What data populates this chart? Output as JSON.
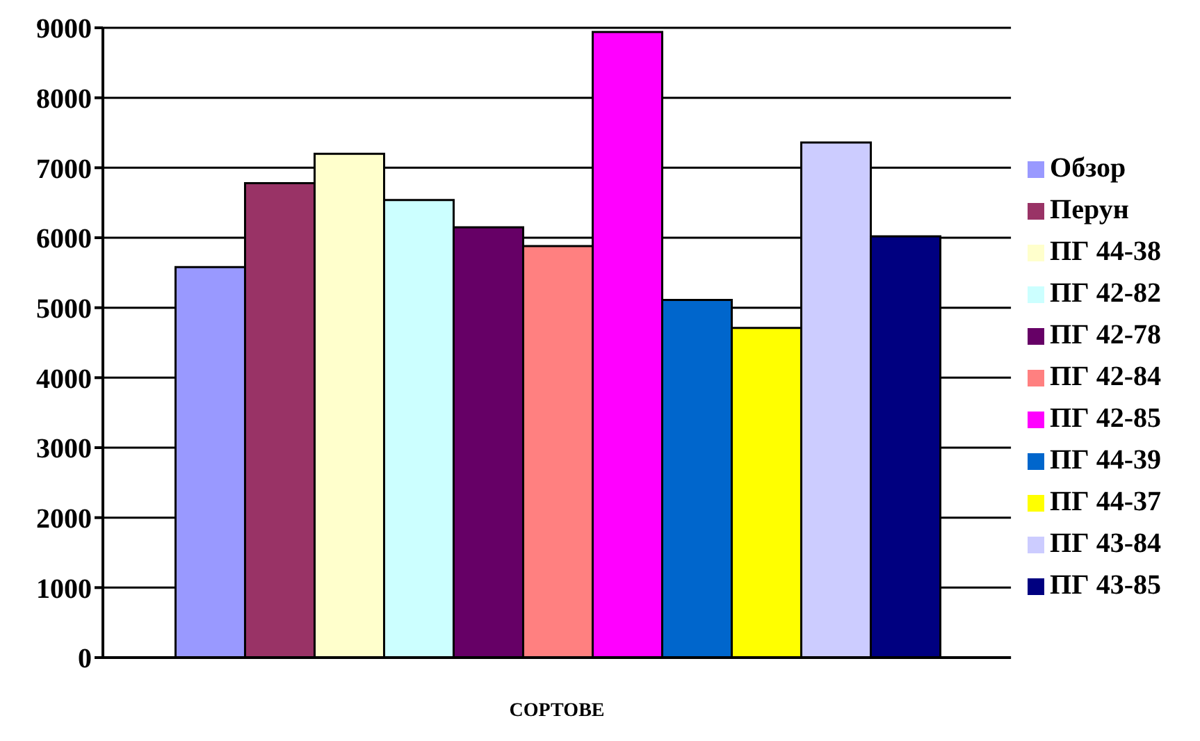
{
  "chart_data": {
    "type": "bar",
    "xlabel": "СОРТОВЕ",
    "categories": [
      null
    ],
    "ylim": [
      0,
      9000
    ],
    "yticks": [
      0,
      1000,
      2000,
      3000,
      4000,
      5000,
      6000,
      7000,
      8000,
      9000
    ],
    "grid": "y",
    "legend": "right",
    "series": [
      {
        "name": "Обзор",
        "color": "#9999ff",
        "values": [
          5580
        ]
      },
      {
        "name": "Перун",
        "color": "#993366",
        "values": [
          6780
        ]
      },
      {
        "name": "ПГ 44-38",
        "color": "#ffffcc",
        "values": [
          7200
        ]
      },
      {
        "name": "ПГ 42-82",
        "color": "#ccffff",
        "values": [
          6540
        ]
      },
      {
        "name": "ПГ 42-78",
        "color": "#660066",
        "values": [
          6150
        ]
      },
      {
        "name": "ПГ 42-84",
        "color": "#ff8080",
        "values": [
          5880
        ]
      },
      {
        "name": "ПГ 42-85",
        "color": "#ff00ff",
        "values": [
          8940
        ]
      },
      {
        "name": "ПГ 44-39",
        "color": "#0066cc",
        "values": [
          5110
        ]
      },
      {
        "name": "ПГ 44-37",
        "color": "#ffff00",
        "values": [
          4710
        ]
      },
      {
        "name": "ПГ 43-84",
        "color": "#ccccff",
        "values": [
          7360
        ]
      },
      {
        "name": "ПГ 43-85",
        "color": "#000080",
        "values": [
          6020
        ]
      }
    ]
  }
}
